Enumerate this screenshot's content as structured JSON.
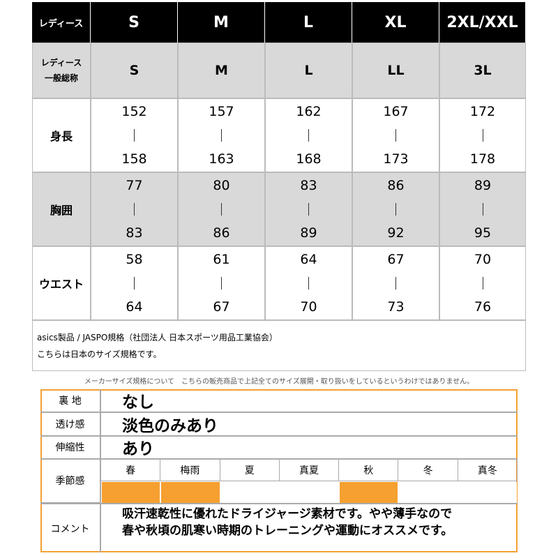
{
  "size_table": {
    "header": {
      "label": "レディース",
      "sizes": [
        "S",
        "M",
        "L",
        "XL",
        "2XL/XXL"
      ]
    },
    "general": {
      "label": [
        "レディース",
        "一般総称"
      ],
      "sizes": [
        "S",
        "M",
        "L",
        "LL",
        "3L"
      ]
    },
    "rows": [
      {
        "label": "身長",
        "ranges": [
          [
            152,
            158
          ],
          [
            157,
            163
          ],
          [
            162,
            168
          ],
          [
            167,
            173
          ],
          [
            172,
            178
          ]
        ]
      },
      {
        "label": "胸囲",
        "ranges": [
          [
            77,
            83
          ],
          [
            80,
            86
          ],
          [
            83,
            89
          ],
          [
            86,
            92
          ],
          [
            89,
            95
          ]
        ]
      },
      {
        "label": "ウエスト",
        "ranges": [
          [
            58,
            64
          ],
          [
            61,
            67
          ],
          [
            64,
            70
          ],
          [
            67,
            73
          ],
          [
            70,
            76
          ]
        ]
      }
    ],
    "note": [
      "asics製品 / JASPO規格（社団法人 日本スポーツ用品工業協会）",
      "こちらは日本のサイズ規格です。"
    ]
  },
  "disclaimer": "メーカーサイズ規格について　こちらの販売商品で上記全てのサイズ展開・取り扱いをしているというわけではありません。",
  "attributes": {
    "accent_color": "#f5a030",
    "rows": [
      {
        "label": "裏 地",
        "value": "なし"
      },
      {
        "label": "透け感",
        "value": "淡色のみあり"
      },
      {
        "label": "伸縮性",
        "value": "あり"
      }
    ],
    "season": {
      "label": "季節感",
      "items": [
        {
          "name": "春",
          "active": true
        },
        {
          "name": "梅雨",
          "active": true
        },
        {
          "name": "夏",
          "active": false
        },
        {
          "name": "真夏",
          "active": false
        },
        {
          "name": "秋",
          "active": true
        },
        {
          "name": "冬",
          "active": false
        },
        {
          "name": "真冬",
          "active": false
        }
      ]
    },
    "comment": {
      "label": "コメント",
      "lines": [
        "吸汗速乾性に優れたドライジャージ素材です。やや薄手なので",
        "春や秋頃の肌寒い時期のトレーニングや運動にオススメです。"
      ]
    }
  }
}
